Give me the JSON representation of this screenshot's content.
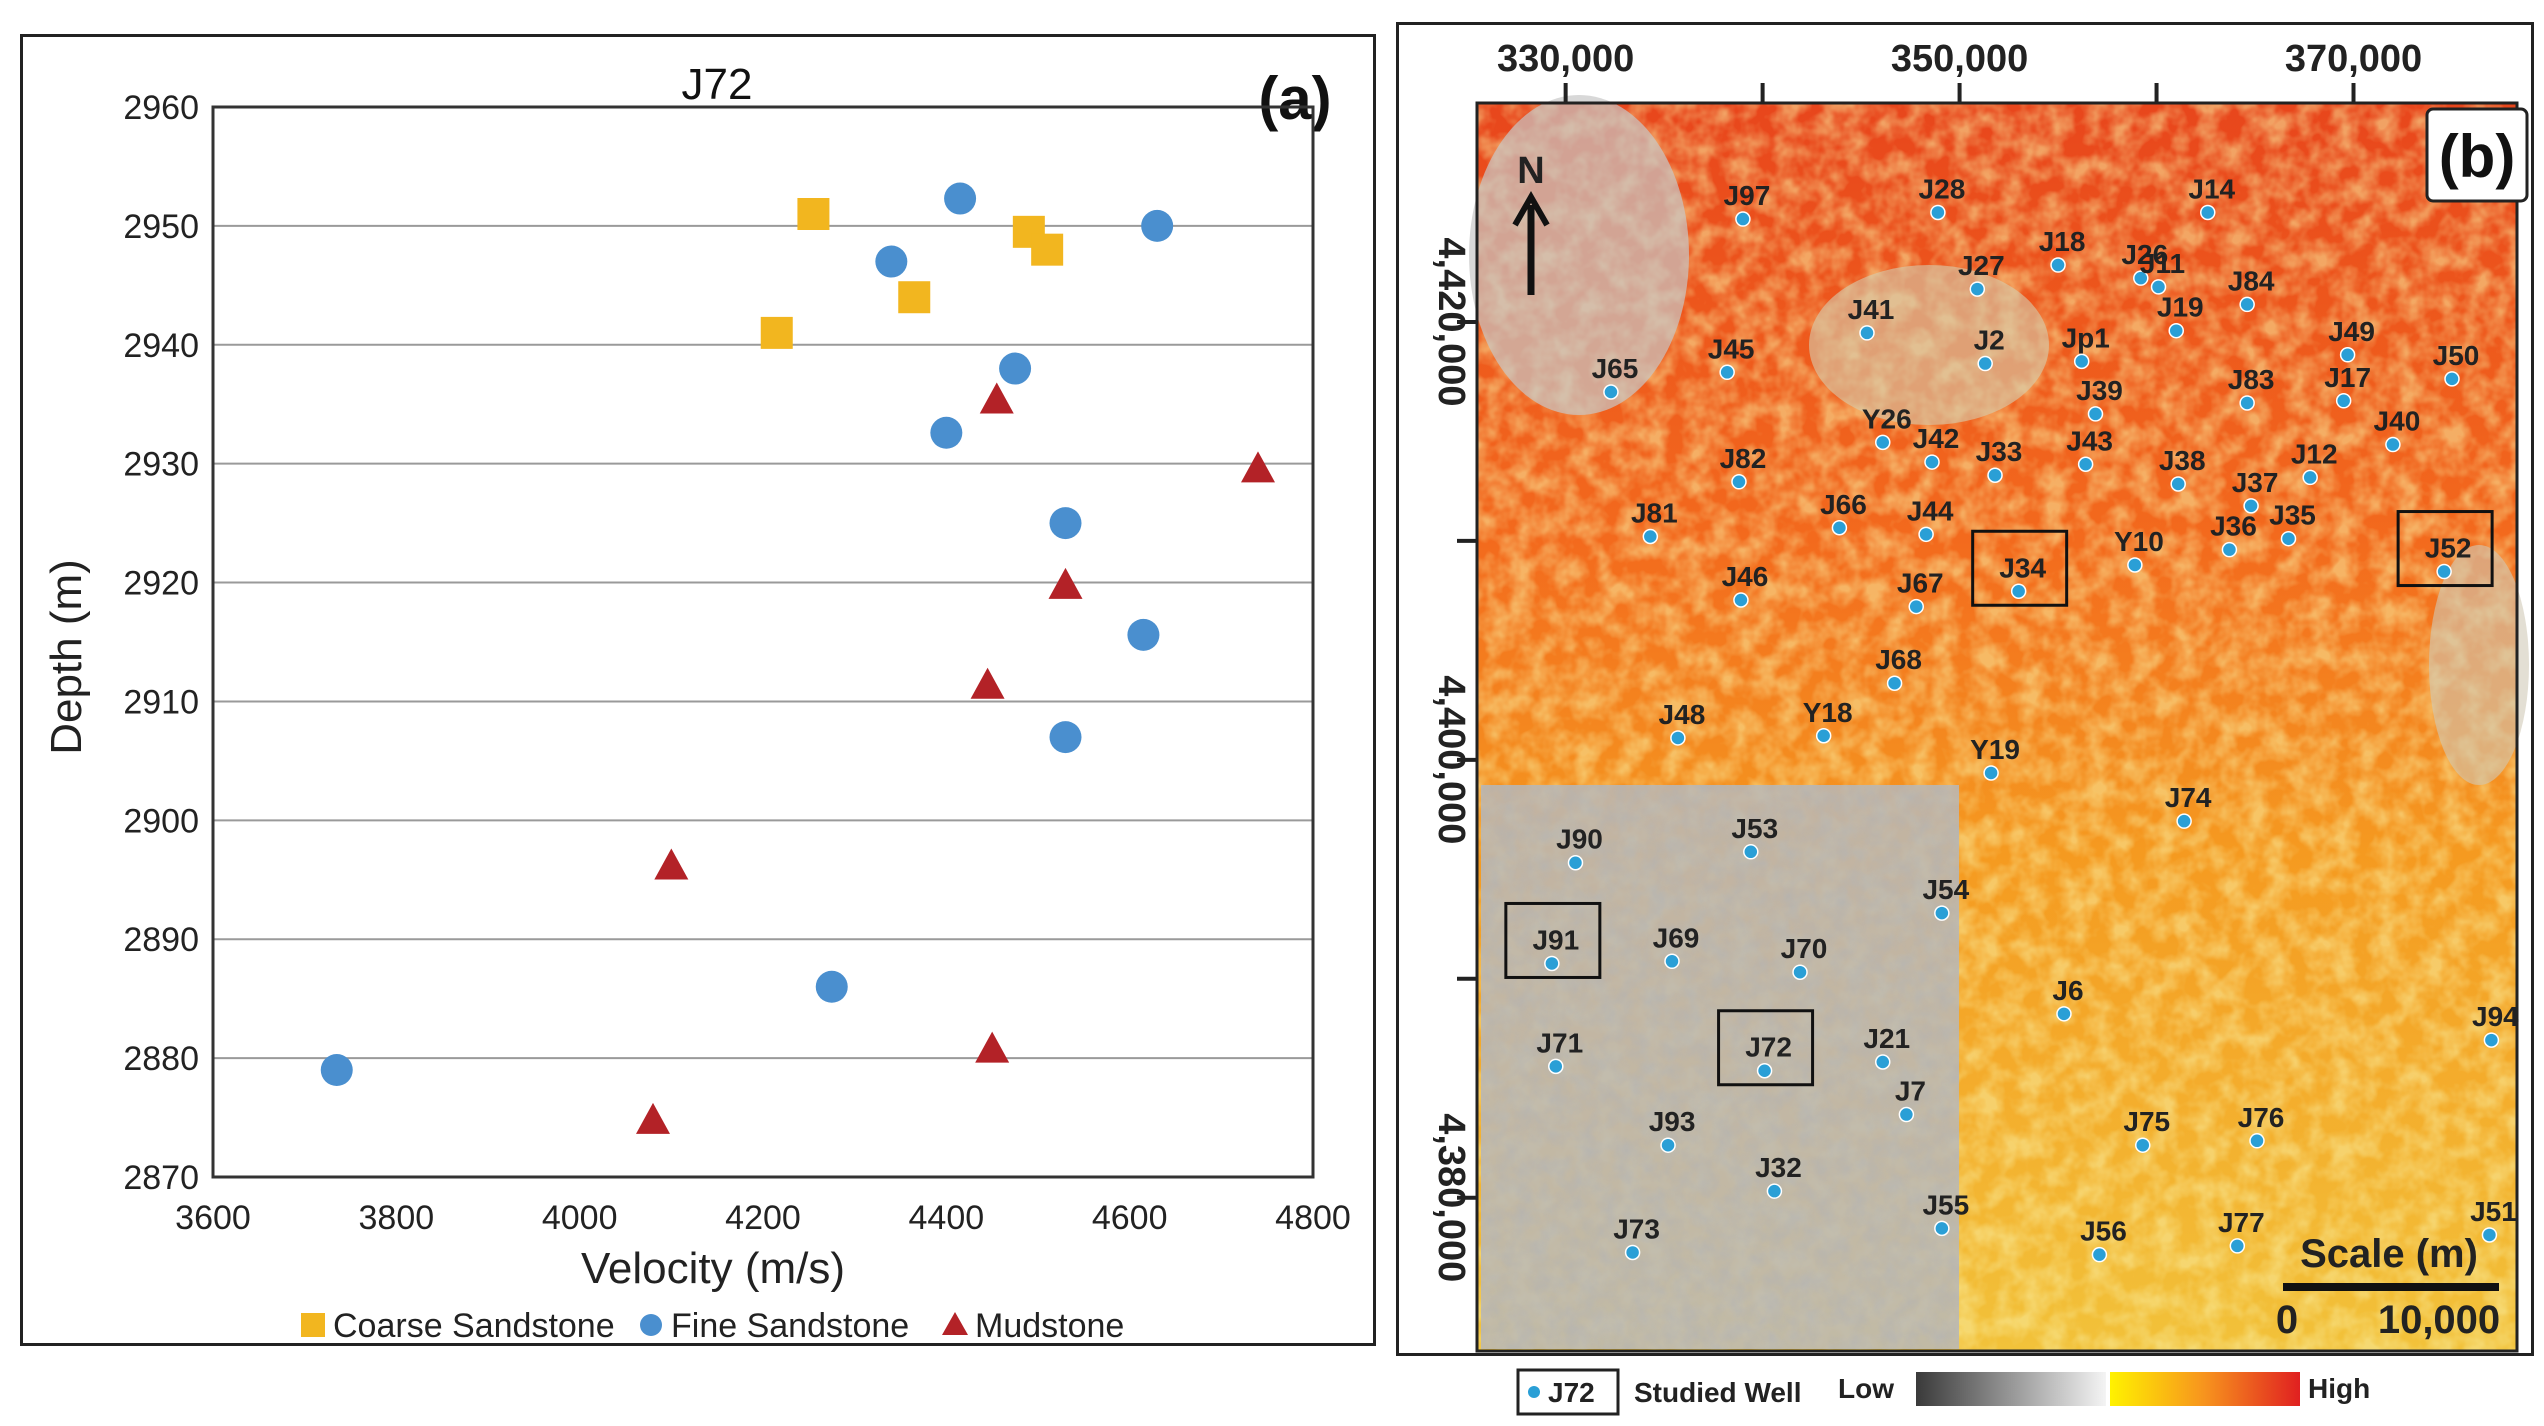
{
  "chart_data": [
    {
      "type": "scatter",
      "panel_label": "(a)",
      "title": "J72",
      "xlabel": "Velocity (m/s)",
      "ylabel": "Depth (m)",
      "xlim": [
        3600,
        4800
      ],
      "ylim": [
        2870,
        2960
      ],
      "xticks": [
        "3600",
        "3800",
        "4000",
        "4200",
        "4400",
        "4600",
        "4800"
      ],
      "yticks": [
        "2870",
        "2880",
        "2890",
        "2900",
        "2910",
        "2920",
        "2930",
        "2940",
        "2950",
        "2960"
      ],
      "grid": "horizontal",
      "legend_position": "bottom",
      "series": [
        {
          "name": "Coarse Sandstone",
          "marker": "square",
          "color": "#f2b61f",
          "points": [
            [
              4255,
              2951
            ],
            [
              4490,
              2949.5
            ],
            [
              4510,
              2948
            ],
            [
              4365,
              2944
            ],
            [
              4215,
              2941
            ]
          ]
        },
        {
          "name": "Fine Sandstone",
          "marker": "circle",
          "color": "#4a8fcf",
          "points": [
            [
              4415,
              2952.3
            ],
            [
              4630,
              2950
            ],
            [
              4340,
              2947
            ],
            [
              4475,
              2938
            ],
            [
              4400,
              2932.6
            ],
            [
              4530,
              2925
            ],
            [
              4615,
              2915.6
            ],
            [
              4530,
              2907
            ],
            [
              4275,
              2886
            ],
            [
              3735,
              2879
            ]
          ]
        },
        {
          "name": "Mudstone",
          "marker": "triangle",
          "color": "#b32227",
          "points": [
            [
              4455,
              2935.4
            ],
            [
              4740,
              2929.6
            ],
            [
              4530,
              2919.8
            ],
            [
              4445,
              2911.4
            ],
            [
              4100,
              2896.2
            ],
            [
              4450,
              2880.8
            ],
            [
              4080,
              2874.8
            ]
          ]
        }
      ]
    },
    {
      "type": "map",
      "panel_label": "(b)",
      "x_ticks": [
        "330,000",
        "350,000",
        "370,000"
      ],
      "y_ticks": [
        "4,420,000",
        "4,400,000",
        "4,380,000"
      ],
      "north_label": "N",
      "scale_label": "Scale (m)",
      "scale_start": "0",
      "scale_end": "10,000",
      "legend": {
        "sample_well": "J72",
        "studied_label": "Studied Well",
        "low_label": "Low",
        "high_label": "High"
      },
      "wells": [
        {
          "name": "J97",
          "x": 339.0,
          "y": 4424.7
        },
        {
          "name": "J28",
          "x": 348.9,
          "y": 4425.0
        },
        {
          "name": "J14",
          "x": 362.6,
          "y": 4425.0
        },
        {
          "name": "J18",
          "x": 355.0,
          "y": 4422.6
        },
        {
          "name": "J26",
          "x": 359.2,
          "y": 4422.0
        },
        {
          "name": "J11",
          "x": 360.1,
          "y": 4421.6
        },
        {
          "name": "J27",
          "x": 350.9,
          "y": 4421.5
        },
        {
          "name": "J84",
          "x": 364.6,
          "y": 4420.8
        },
        {
          "name": "J41",
          "x": 345.3,
          "y": 4419.5
        },
        {
          "name": "J19",
          "x": 361.0,
          "y": 4419.6
        },
        {
          "name": "J49",
          "x": 369.7,
          "y": 4418.5
        },
        {
          "name": "J45",
          "x": 338.2,
          "y": 4417.7
        },
        {
          "name": "J2",
          "x": 351.3,
          "y": 4418.1
        },
        {
          "name": "Jp1",
          "x": 356.2,
          "y": 4418.2
        },
        {
          "name": "J50",
          "x": 375.0,
          "y": 4417.4
        },
        {
          "name": "J65",
          "x": 332.3,
          "y": 4416.8
        },
        {
          "name": "J39",
          "x": 356.9,
          "y": 4415.8
        },
        {
          "name": "J83",
          "x": 364.6,
          "y": 4416.3
        },
        {
          "name": "J17",
          "x": 369.5,
          "y": 4416.4
        },
        {
          "name": "Y26",
          "x": 346.1,
          "y": 4414.5
        },
        {
          "name": "J42",
          "x": 348.6,
          "y": 4413.6
        },
        {
          "name": "J33",
          "x": 351.8,
          "y": 4413.0
        },
        {
          "name": "J43",
          "x": 356.4,
          "y": 4413.5
        },
        {
          "name": "J40",
          "x": 372.0,
          "y": 4414.4
        },
        {
          "name": "J82",
          "x": 338.8,
          "y": 4412.7
        },
        {
          "name": "J38",
          "x": 361.1,
          "y": 4412.6
        },
        {
          "name": "J12",
          "x": 367.8,
          "y": 4412.9
        },
        {
          "name": "J37",
          "x": 364.8,
          "y": 4411.6
        },
        {
          "name": "J81",
          "x": 334.3,
          "y": 4410.2
        },
        {
          "name": "J66",
          "x": 343.9,
          "y": 4410.6
        },
        {
          "name": "J44",
          "x": 348.3,
          "y": 4410.3
        },
        {
          "name": "J35",
          "x": 366.7,
          "y": 4410.1
        },
        {
          "name": "J36",
          "x": 363.7,
          "y": 4409.6
        },
        {
          "name": "Y10",
          "x": 358.9,
          "y": 4408.9
        },
        {
          "name": "J34",
          "x": 353.0,
          "y": 4407.7
        },
        {
          "name": "J52",
          "x": 374.6,
          "y": 4408.6
        },
        {
          "name": "J46",
          "x": 338.9,
          "y": 4407.3
        },
        {
          "name": "J67",
          "x": 347.8,
          "y": 4407.0
        },
        {
          "name": "J68",
          "x": 346.7,
          "y": 4403.5
        },
        {
          "name": "J48",
          "x": 335.7,
          "y": 4401.0
        },
        {
          "name": "Y18",
          "x": 343.1,
          "y": 4401.1
        },
        {
          "name": "Y19",
          "x": 351.6,
          "y": 4399.4
        },
        {
          "name": "J74",
          "x": 361.4,
          "y": 4397.2
        },
        {
          "name": "J90",
          "x": 330.5,
          "y": 4395.3
        },
        {
          "name": "J53",
          "x": 339.4,
          "y": 4395.8
        },
        {
          "name": "J54",
          "x": 349.1,
          "y": 4393.0
        },
        {
          "name": "J91",
          "x": 329.3,
          "y": 4390.7
        },
        {
          "name": "J69",
          "x": 335.4,
          "y": 4390.8
        },
        {
          "name": "J70",
          "x": 341.9,
          "y": 4390.3
        },
        {
          "name": "J6",
          "x": 355.3,
          "y": 4388.4
        },
        {
          "name": "J94",
          "x": 377.0,
          "y": 4387.2
        },
        {
          "name": "J71",
          "x": 329.5,
          "y": 4386.0
        },
        {
          "name": "J72",
          "x": 340.1,
          "y": 4385.8
        },
        {
          "name": "J21",
          "x": 346.1,
          "y": 4386.2
        },
        {
          "name": "J7",
          "x": 347.3,
          "y": 4383.8
        },
        {
          "name": "J93",
          "x": 335.2,
          "y": 4382.4
        },
        {
          "name": "J75",
          "x": 359.3,
          "y": 4382.4
        },
        {
          "name": "J76",
          "x": 365.1,
          "y": 4382.6
        },
        {
          "name": "J32",
          "x": 340.6,
          "y": 4380.3
        },
        {
          "name": "J55",
          "x": 349.1,
          "y": 4378.6
        },
        {
          "name": "J73",
          "x": 333.4,
          "y": 4377.5
        },
        {
          "name": "J56",
          "x": 357.1,
          "y": 4377.4
        },
        {
          "name": "J77",
          "x": 364.1,
          "y": 4377.8
        },
        {
          "name": "J51",
          "x": 376.9,
          "y": 4378.3
        }
      ],
      "studied_wells": [
        "J34",
        "J52",
        "J91",
        "J72"
      ]
    }
  ]
}
